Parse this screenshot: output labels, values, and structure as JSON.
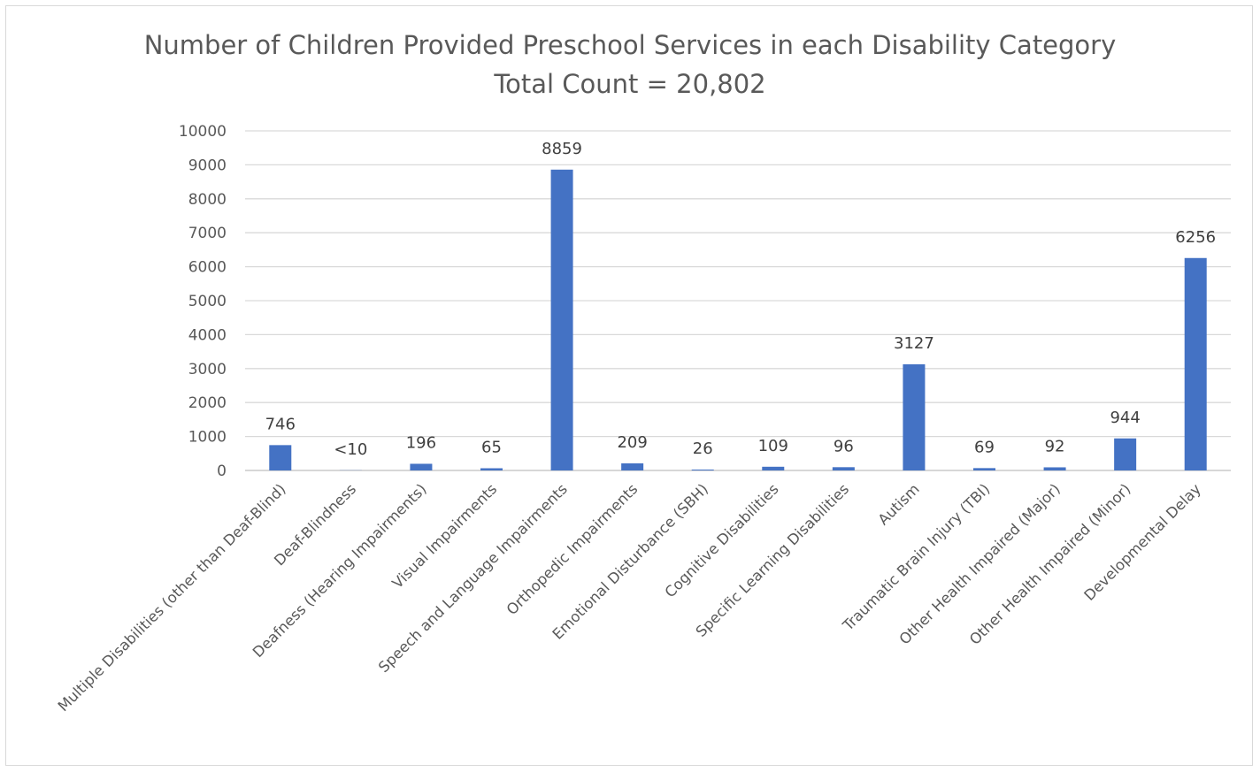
{
  "chart_data": {
    "type": "bar",
    "title_lines": [
      "Number of Children Provided Preschool Services in each Disability Category",
      "Total Count = 20,802"
    ],
    "xlabel": "",
    "ylabel": "",
    "ylim": [
      0,
      10000
    ],
    "yticks": [
      0,
      1000,
      2000,
      3000,
      4000,
      5000,
      6000,
      7000,
      8000,
      9000,
      10000
    ],
    "grid": true,
    "legend": "none",
    "bar_color": "#4472c4",
    "categories": [
      "Multiple Disabilities (other than Deaf-Blind)",
      "Deaf-Blindness",
      "Deafness (Hearing Impairments)",
      "Visual Impairments",
      "Speech and Language Impairments",
      "Orthopedic Impairments",
      "Emotional Disturbance (SBH)",
      "Cognitive Disabilities",
      "Specific Learning Disabilities",
      "Autism",
      "Traumatic Brain Injury (TBI)",
      "Other Health Impaired (Major)",
      "Other Health Impaired (Minor)",
      "Developmental Delay"
    ],
    "values": [
      746,
      5,
      196,
      65,
      8859,
      209,
      26,
      109,
      96,
      3127,
      69,
      92,
      944,
      6256
    ],
    "data_labels": [
      "746",
      "<10",
      "196",
      "65",
      "8859",
      "209",
      "26",
      "109",
      "96",
      "3127",
      "69",
      "92",
      "944",
      "6256"
    ]
  }
}
